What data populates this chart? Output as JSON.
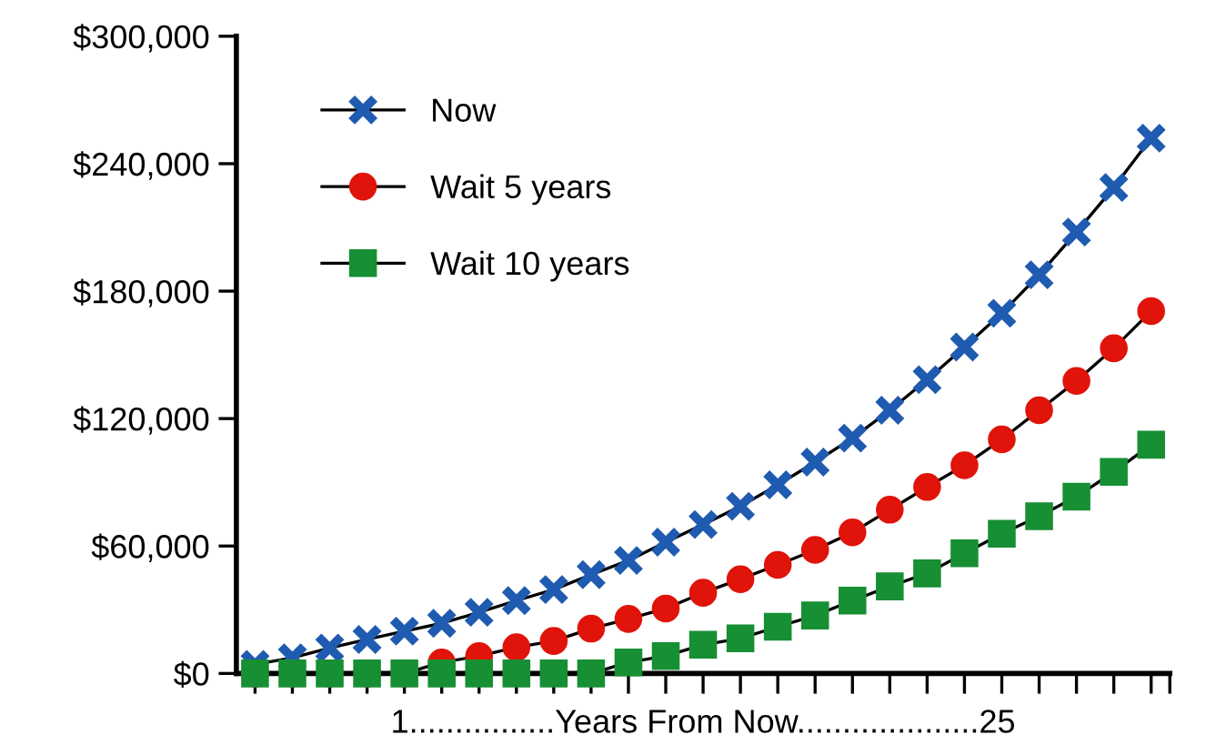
{
  "chart_data": {
    "type": "line",
    "xlabel": "1................Years From Now....................25",
    "categories": [
      null,
      null,
      null,
      null,
      null,
      null,
      null,
      null,
      null,
      null,
      null,
      null,
      null,
      null,
      null,
      null,
      null,
      null,
      null,
      null,
      null,
      null,
      null,
      null,
      null
    ],
    "ylim": [
      0,
      300000
    ],
    "yticks": [
      {
        "value": 0,
        "label": "$0"
      },
      {
        "value": 60000,
        "label": "$60,000"
      },
      {
        "value": 120000,
        "label": "$120,000"
      },
      {
        "value": 180000,
        "label": "$180,000"
      },
      {
        "value": 240000,
        "label": "$240,000"
      },
      {
        "value": 300000,
        "label": "$300,000"
      }
    ],
    "tick_labels": "y",
    "grid": false,
    "legend": "top left",
    "line_style": "solid",
    "series": [
      {
        "name": "Now",
        "color": "#1f5bb0",
        "marker": "cross",
        "values": [
          4300,
          7400,
          12000,
          16000,
          19900,
          23600,
          28800,
          34300,
          39500,
          46500,
          53200,
          61800,
          70100,
          78700,
          88800,
          99500,
          110800,
          123900,
          138300,
          153700,
          169600,
          187700,
          207800,
          228800,
          252000
        ]
      },
      {
        "name": "Wait 5 years",
        "color": "#e0140a",
        "marker": "circle",
        "values": [
          0,
          0,
          0,
          0,
          0,
          5200,
          8200,
          12300,
          15300,
          21100,
          25700,
          30600,
          38000,
          44400,
          51100,
          58200,
          66400,
          77100,
          87800,
          98000,
          110200,
          123900,
          137700,
          153100,
          170600
        ]
      },
      {
        "name": "Wait 10 years",
        "color": "#178f34",
        "marker": "square",
        "values": [
          0,
          0,
          0,
          0,
          0,
          0,
          0,
          0,
          0,
          0,
          5200,
          8200,
          13500,
          16500,
          22000,
          27300,
          34300,
          41000,
          47100,
          56600,
          65800,
          74000,
          83200,
          94900,
          107700
        ]
      }
    ]
  }
}
